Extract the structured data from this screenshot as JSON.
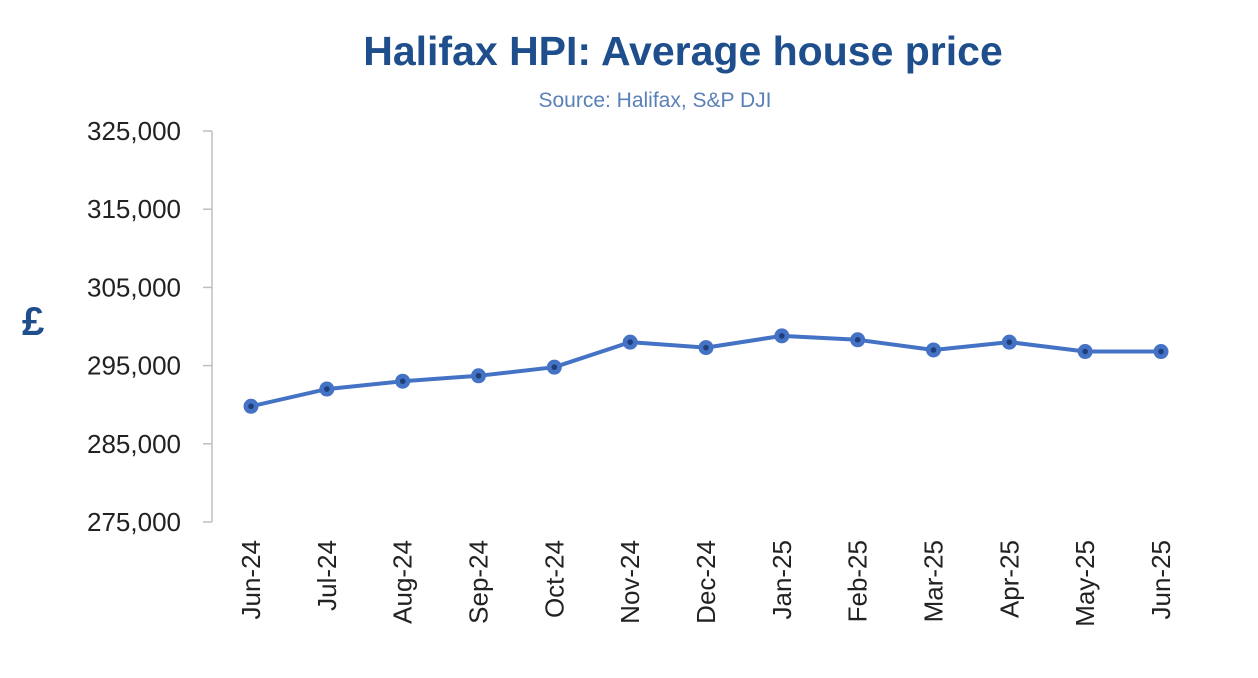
{
  "colors": {
    "title": "#1f4e8c",
    "subtitle": "#5a80b8",
    "axis_label": "#1f4e8c",
    "line": "#4472c4",
    "marker": "#4472c4",
    "marker_center": "#1f3f7a",
    "axis": "#bfbfbf"
  },
  "chart_data": {
    "type": "line",
    "title": "Halifax HPI: Average house price",
    "subtitle": "Source: Halifax,  S&P DJI",
    "xlabel": "",
    "ylabel": "£",
    "ylim": [
      275000,
      325000
    ],
    "yticks": [
      275000,
      285000,
      295000,
      305000,
      315000,
      325000
    ],
    "ytick_labels": [
      "275,000",
      "285,000",
      "295,000",
      "305,000",
      "315,000",
      "325,000"
    ],
    "categories": [
      "Jun-24",
      "Jul-24",
      "Aug-24",
      "Sep-24",
      "Oct-24",
      "Nov-24",
      "Dec-24",
      "Jan-25",
      "Feb-25",
      "Mar-25",
      "Apr-25",
      "May-25",
      "Jun-25"
    ],
    "series": [
      {
        "values": [
          289800,
          292000,
          293000,
          293700,
          294800,
          298000,
          297300,
          298800,
          298300,
          297000,
          298000,
          296800,
          296800
        ]
      }
    ],
    "grid": false,
    "legend": "none"
  }
}
